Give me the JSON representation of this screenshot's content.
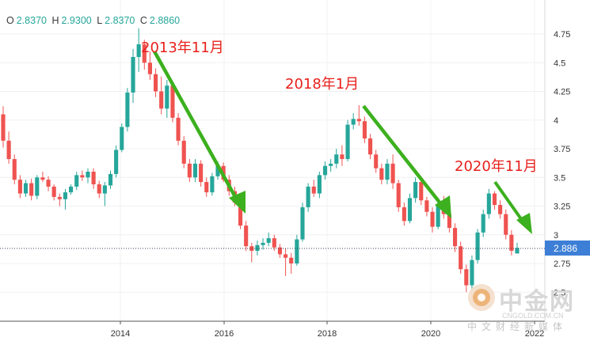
{
  "ohlc_readout": {
    "o_label": "O",
    "o_value": "2.8370",
    "h_label": "H",
    "h_value": "2.9300",
    "l_label": "L",
    "l_value": "2.8370",
    "c_label": "C",
    "c_value": "2.8860"
  },
  "colors": {
    "up": "#26a69a",
    "down": "#ef5350",
    "annotation": "#e8201c",
    "arrow": "#3cb01e",
    "price_tag": "#3d7fd6"
  },
  "watermark": {
    "logo_text": "中金网",
    "url": "CNGOLD.COM.CN",
    "subtitle": "中文财经新媒体"
  },
  "chart_data": {
    "type": "candlestick",
    "x_axis": {
      "ticks": [
        "2014",
        "2016",
        "2018",
        "2020",
        "2022"
      ]
    },
    "y_axis": {
      "ticks": [
        "2.5",
        "2.75",
        "3",
        "3.25",
        "3.5",
        "3.75",
        "4",
        "4.25",
        "4.5",
        "4.75"
      ],
      "range": [
        2.4,
        4.85
      ],
      "position": "right"
    },
    "last_price": "2.886",
    "annotations": [
      "2013年11月",
      "2018年1月",
      "2020年11月"
    ],
    "candles": [
      {
        "o": 4.05,
        "h": 4.12,
        "l": 3.76,
        "c": 3.82
      },
      {
        "o": 3.82,
        "h": 3.9,
        "l": 3.62,
        "c": 3.66
      },
      {
        "o": 3.66,
        "h": 3.7,
        "l": 3.44,
        "c": 3.48
      },
      {
        "o": 3.48,
        "h": 3.52,
        "l": 3.32,
        "c": 3.36
      },
      {
        "o": 3.36,
        "h": 3.48,
        "l": 3.33,
        "c": 3.45
      },
      {
        "o": 3.45,
        "h": 3.49,
        "l": 3.3,
        "c": 3.34
      },
      {
        "o": 3.34,
        "h": 3.52,
        "l": 3.31,
        "c": 3.5
      },
      {
        "o": 3.5,
        "h": 3.55,
        "l": 3.46,
        "c": 3.48
      },
      {
        "o": 3.48,
        "h": 3.51,
        "l": 3.38,
        "c": 3.42
      },
      {
        "o": 3.42,
        "h": 3.44,
        "l": 3.3,
        "c": 3.33
      },
      {
        "o": 3.33,
        "h": 3.36,
        "l": 3.25,
        "c": 3.31
      },
      {
        "o": 3.31,
        "h": 3.4,
        "l": 3.22,
        "c": 3.37
      },
      {
        "o": 3.37,
        "h": 3.44,
        "l": 3.35,
        "c": 3.42
      },
      {
        "o": 3.42,
        "h": 3.55,
        "l": 3.39,
        "c": 3.52
      },
      {
        "o": 3.52,
        "h": 3.56,
        "l": 3.47,
        "c": 3.5
      },
      {
        "o": 3.5,
        "h": 3.58,
        "l": 3.45,
        "c": 3.55
      },
      {
        "o": 3.55,
        "h": 3.58,
        "l": 3.4,
        "c": 3.44
      },
      {
        "o": 3.44,
        "h": 3.47,
        "l": 3.32,
        "c": 3.36
      },
      {
        "o": 3.36,
        "h": 3.46,
        "l": 3.25,
        "c": 3.43
      },
      {
        "o": 3.43,
        "h": 3.56,
        "l": 3.4,
        "c": 3.53
      },
      {
        "o": 3.53,
        "h": 3.78,
        "l": 3.5,
        "c": 3.74
      },
      {
        "o": 3.74,
        "h": 3.97,
        "l": 3.72,
        "c": 3.94
      },
      {
        "o": 3.94,
        "h": 4.28,
        "l": 3.9,
        "c": 4.24
      },
      {
        "o": 4.24,
        "h": 4.62,
        "l": 4.15,
        "c": 4.55
      },
      {
        "o": 4.55,
        "h": 4.8,
        "l": 4.42,
        "c": 4.66
      },
      {
        "o": 4.66,
        "h": 4.7,
        "l": 4.44,
        "c": 4.5
      },
      {
        "o": 4.5,
        "h": 4.6,
        "l": 4.35,
        "c": 4.4
      },
      {
        "o": 4.4,
        "h": 4.45,
        "l": 4.2,
        "c": 4.25
      },
      {
        "o": 4.25,
        "h": 4.38,
        "l": 4.05,
        "c": 4.1
      },
      {
        "o": 4.1,
        "h": 4.35,
        "l": 4.02,
        "c": 4.3
      },
      {
        "o": 4.3,
        "h": 4.34,
        "l": 3.98,
        "c": 4.02
      },
      {
        "o": 4.02,
        "h": 4.06,
        "l": 3.78,
        "c": 3.82
      },
      {
        "o": 3.82,
        "h": 3.86,
        "l": 3.58,
        "c": 3.62
      },
      {
        "o": 3.62,
        "h": 3.66,
        "l": 3.46,
        "c": 3.5
      },
      {
        "o": 3.5,
        "h": 3.66,
        "l": 3.46,
        "c": 3.62
      },
      {
        "o": 3.62,
        "h": 3.65,
        "l": 3.42,
        "c": 3.46
      },
      {
        "o": 3.46,
        "h": 3.5,
        "l": 3.33,
        "c": 3.37
      },
      {
        "o": 3.37,
        "h": 3.54,
        "l": 3.34,
        "c": 3.51
      },
      {
        "o": 3.51,
        "h": 3.64,
        "l": 3.48,
        "c": 3.6
      },
      {
        "o": 3.6,
        "h": 3.63,
        "l": 3.46,
        "c": 3.48
      },
      {
        "o": 3.48,
        "h": 3.52,
        "l": 3.34,
        "c": 3.38
      },
      {
        "o": 3.38,
        "h": 3.42,
        "l": 3.25,
        "c": 3.28
      },
      {
        "o": 3.28,
        "h": 3.32,
        "l": 3.05,
        "c": 3.08
      },
      {
        "o": 3.08,
        "h": 3.12,
        "l": 2.86,
        "c": 2.9
      },
      {
        "o": 2.9,
        "h": 2.93,
        "l": 2.76,
        "c": 2.86
      },
      {
        "o": 2.86,
        "h": 2.95,
        "l": 2.82,
        "c": 2.91
      },
      {
        "o": 2.91,
        "h": 2.97,
        "l": 2.87,
        "c": 2.93
      },
      {
        "o": 2.93,
        "h": 3.02,
        "l": 2.9,
        "c": 2.97
      },
      {
        "o": 2.97,
        "h": 3.0,
        "l": 2.86,
        "c": 2.89
      },
      {
        "o": 2.89,
        "h": 2.92,
        "l": 2.8,
        "c": 2.83
      },
      {
        "o": 2.83,
        "h": 2.88,
        "l": 2.64,
        "c": 2.8
      },
      {
        "o": 2.8,
        "h": 2.84,
        "l": 2.66,
        "c": 2.75
      },
      {
        "o": 2.75,
        "h": 3.0,
        "l": 2.73,
        "c": 2.96
      },
      {
        "o": 2.96,
        "h": 3.28,
        "l": 2.94,
        "c": 3.24
      },
      {
        "o": 3.24,
        "h": 3.45,
        "l": 3.2,
        "c": 3.42
      },
      {
        "o": 3.42,
        "h": 3.48,
        "l": 3.33,
        "c": 3.36
      },
      {
        "o": 3.36,
        "h": 3.55,
        "l": 3.32,
        "c": 3.52
      },
      {
        "o": 3.52,
        "h": 3.64,
        "l": 3.48,
        "c": 3.6
      },
      {
        "o": 3.6,
        "h": 3.66,
        "l": 3.55,
        "c": 3.62
      },
      {
        "o": 3.62,
        "h": 3.75,
        "l": 3.58,
        "c": 3.7
      },
      {
        "o": 3.7,
        "h": 3.78,
        "l": 3.6,
        "c": 3.66
      },
      {
        "o": 3.66,
        "h": 4.0,
        "l": 3.64,
        "c": 3.96
      },
      {
        "o": 3.96,
        "h": 4.06,
        "l": 3.92,
        "c": 4.01
      },
      {
        "o": 4.01,
        "h": 4.13,
        "l": 3.95,
        "c": 3.99
      },
      {
        "o": 3.99,
        "h": 4.03,
        "l": 3.8,
        "c": 3.84
      },
      {
        "o": 3.84,
        "h": 3.88,
        "l": 3.66,
        "c": 3.7
      },
      {
        "o": 3.7,
        "h": 3.74,
        "l": 3.54,
        "c": 3.58
      },
      {
        "o": 3.58,
        "h": 3.62,
        "l": 3.44,
        "c": 3.48
      },
      {
        "o": 3.48,
        "h": 3.66,
        "l": 3.44,
        "c": 3.62
      },
      {
        "o": 3.62,
        "h": 3.7,
        "l": 3.4,
        "c": 3.45
      },
      {
        "o": 3.45,
        "h": 3.48,
        "l": 3.2,
        "c": 3.24
      },
      {
        "o": 3.24,
        "h": 3.28,
        "l": 3.08,
        "c": 3.12
      },
      {
        "o": 3.12,
        "h": 3.36,
        "l": 3.1,
        "c": 3.32
      },
      {
        "o": 3.32,
        "h": 3.5,
        "l": 3.28,
        "c": 3.46
      },
      {
        "o": 3.46,
        "h": 3.49,
        "l": 3.26,
        "c": 3.3
      },
      {
        "o": 3.3,
        "h": 3.33,
        "l": 3.16,
        "c": 3.2
      },
      {
        "o": 3.2,
        "h": 3.24,
        "l": 3.02,
        "c": 3.07
      },
      {
        "o": 3.07,
        "h": 3.3,
        "l": 3.05,
        "c": 3.26
      },
      {
        "o": 3.26,
        "h": 3.34,
        "l": 3.14,
        "c": 3.18
      },
      {
        "o": 3.18,
        "h": 3.22,
        "l": 3.02,
        "c": 3.06
      },
      {
        "o": 3.06,
        "h": 3.1,
        "l": 2.85,
        "c": 2.9
      },
      {
        "o": 2.9,
        "h": 2.94,
        "l": 2.66,
        "c": 2.7
      },
      {
        "o": 2.7,
        "h": 2.74,
        "l": 2.5,
        "c": 2.56
      },
      {
        "o": 2.56,
        "h": 2.82,
        "l": 2.52,
        "c": 2.78
      },
      {
        "o": 2.78,
        "h": 3.05,
        "l": 2.75,
        "c": 3.02
      },
      {
        "o": 3.02,
        "h": 3.22,
        "l": 2.98,
        "c": 3.18
      },
      {
        "o": 3.18,
        "h": 3.4,
        "l": 3.14,
        "c": 3.36
      },
      {
        "o": 3.36,
        "h": 3.38,
        "l": 3.22,
        "c": 3.26
      },
      {
        "o": 3.26,
        "h": 3.3,
        "l": 3.14,
        "c": 3.18
      },
      {
        "o": 3.18,
        "h": 3.22,
        "l": 2.96,
        "c": 3.0
      },
      {
        "o": 3.0,
        "h": 3.04,
        "l": 2.82,
        "c": 2.86
      },
      {
        "o": 2.837,
        "h": 2.93,
        "l": 2.837,
        "c": 2.886
      }
    ]
  }
}
